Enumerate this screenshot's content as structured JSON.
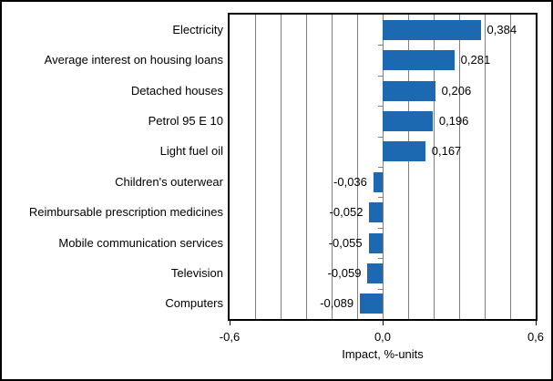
{
  "chart_data": {
    "type": "bar",
    "orientation": "horizontal",
    "xlabel": "Impact, %-units",
    "xlim": [
      -0.6,
      0.6
    ],
    "gridline_step": 0.1,
    "grid_on": true,
    "categories": [
      "Electricity",
      "Average interest on housing loans",
      "Detached houses",
      "Petrol 95 E 10",
      "Light fuel oil",
      "Children's outerwear",
      "Reimbursable prescription medicines",
      "Mobile communication services",
      "Television",
      "Computers"
    ],
    "values": [
      0.384,
      0.281,
      0.206,
      0.196,
      0.167,
      -0.036,
      -0.052,
      -0.055,
      -0.059,
      -0.089
    ],
    "value_labels": [
      "0,384",
      "0,281",
      "0,206",
      "0,196",
      "0,167",
      "-0,036",
      "-0,052",
      "-0,055",
      "-0,059",
      "-0,089"
    ],
    "x_ticks": [
      {
        "value": -0.6,
        "label": "-0,6"
      },
      {
        "value": 0.0,
        "label": "0,0"
      },
      {
        "value": 0.6,
        "label": "0,6"
      }
    ],
    "bar_color": "#1C69B1",
    "grid_color": "#808080",
    "axis_color": "#000000",
    "background_color": "#ffffff"
  }
}
